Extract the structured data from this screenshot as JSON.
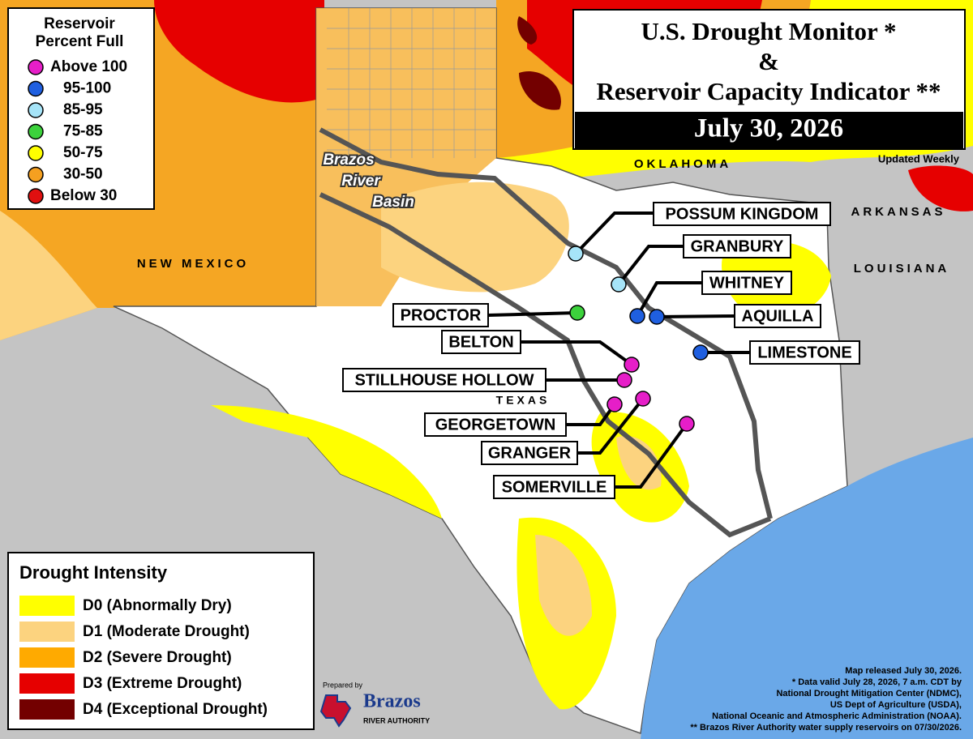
{
  "reservoir_legend": {
    "title": [
      "Reservoir",
      "Percent Full"
    ],
    "items": [
      {
        "label": "Above 100",
        "color": "#e61ec8"
      },
      {
        "label": "95-100",
        "color": "#1f5fe0"
      },
      {
        "label": "85-95",
        "color": "#a6e4f8"
      },
      {
        "label": "75-85",
        "color": "#3cd23c"
      },
      {
        "label": "50-75",
        "color": "#ffff00"
      },
      {
        "label": "30-50",
        "color": "#f5a020"
      },
      {
        "label": "Below 30",
        "color": "#e01010"
      }
    ]
  },
  "title": {
    "lines": [
      "U.S. Drought Monitor *",
      "&",
      "Reservoir Capacity Indicator **"
    ],
    "date": "July 30, 2026"
  },
  "updated": "Updated Weekly",
  "map_labels": {
    "oklahoma": "OKLAHOMA",
    "arkansas": "ARKANSAS",
    "louisiana": "LOUISIANA",
    "new_mexico": "NEW MEXICO",
    "texas": "TEXAS",
    "basin": [
      "Brazos",
      "River",
      "Basin"
    ]
  },
  "reservoirs": [
    {
      "name": "POSSUM KINGDOM",
      "color": "#a6e4f8"
    },
    {
      "name": "GRANBURY",
      "color": "#a6e4f8"
    },
    {
      "name": "WHITNEY",
      "color": "#1f5fe0"
    },
    {
      "name": "AQUILLA",
      "color": "#1f5fe0"
    },
    {
      "name": "LIMESTONE",
      "color": "#1f5fe0"
    },
    {
      "name": "PROCTOR",
      "color": "#3cd23c"
    },
    {
      "name": "BELTON",
      "color": "#e61ec8"
    },
    {
      "name": "STILLHOUSE HOLLOW",
      "color": "#e61ec8"
    },
    {
      "name": "GEORGETOWN",
      "color": "#e61ec8"
    },
    {
      "name": "GRANGER",
      "color": "#e61ec8"
    },
    {
      "name": "SOMERVILLE",
      "color": "#e61ec8"
    }
  ],
  "drought_legend": {
    "title": "Drought Intensity",
    "items": [
      {
        "label": "D0 (Abnormally Dry)",
        "color": "#ffff00"
      },
      {
        "label": "D1 (Moderate Drought)",
        "color": "#fcd37f"
      },
      {
        "label": "D2 (Severe Drought)",
        "color": "#ffaa00"
      },
      {
        "label": "D3 (Extreme Drought)",
        "color": "#e60000"
      },
      {
        "label": "D4 (Exceptional Drought)",
        "color": "#730000"
      }
    ]
  },
  "logo": {
    "prepared": "Prepared by",
    "name": "Brazos",
    "sub": "RIVER AUTHORITY"
  },
  "footnotes": [
    "Map released July 30, 2026.",
    "* Data valid July 28, 2026, 7 a.m. CDT by",
    "National Drought Mitigation Center (NDMC),",
    "US Dept of Agriculture (USDA),",
    "National Oceanic and Atmospheric Administration (NOAA).",
    "** Brazos River Authority water supply reservoirs on 07/30/2026."
  ]
}
